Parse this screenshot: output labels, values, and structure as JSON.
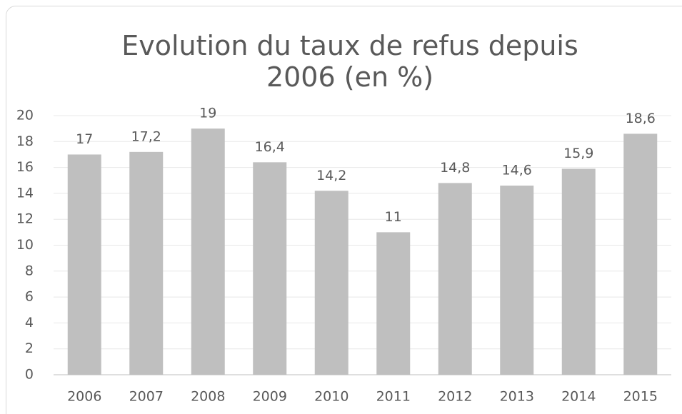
{
  "chart_data": {
    "type": "bar",
    "title": "Evolution du taux de refus depuis 2006 (en %)",
    "categories": [
      "2006",
      "2007",
      "2008",
      "2009",
      "2010",
      "2011",
      "2012",
      "2013",
      "2014",
      "2015"
    ],
    "values": [
      17,
      17.2,
      19,
      16.4,
      14.2,
      11,
      14.8,
      14.6,
      15.9,
      18.6
    ],
    "value_labels": [
      "17",
      "17,2",
      "19",
      "16,4",
      "14,2",
      "11",
      "14,8",
      "14,6",
      "15,9",
      "18,6"
    ],
    "color": "#bfbfbf",
    "ylim": [
      0,
      20
    ],
    "yticks": [
      0,
      2,
      4,
      6,
      8,
      10,
      12,
      14,
      16,
      18,
      20
    ],
    "grid": true
  }
}
